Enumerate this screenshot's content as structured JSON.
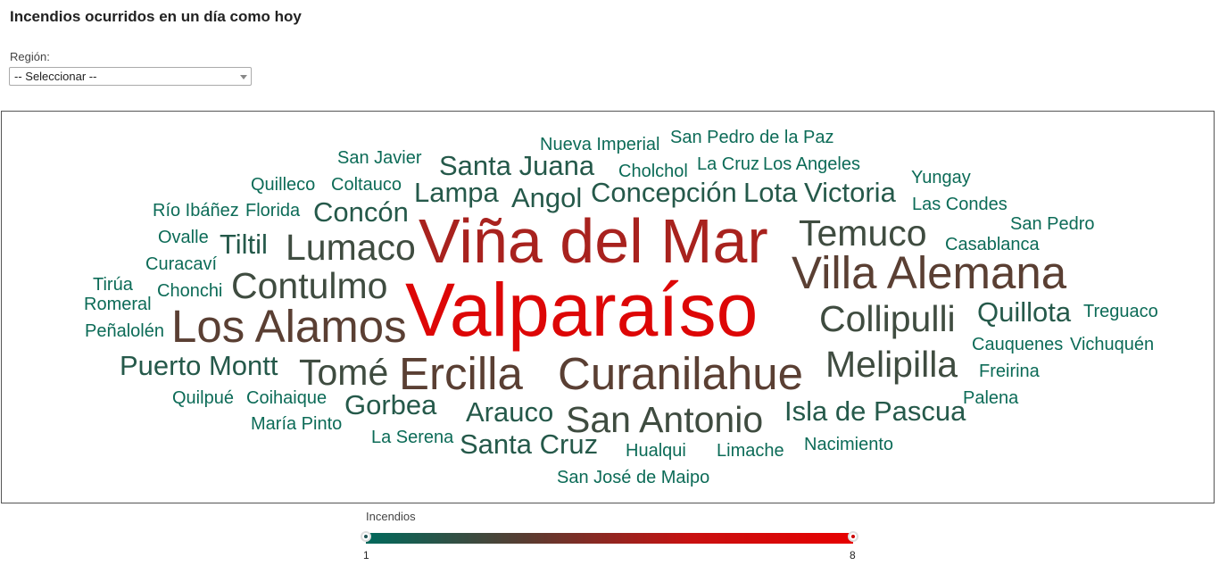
{
  "page": {
    "title": "Incendios ocurridos en un día como hoy"
  },
  "filter": {
    "label": "Región:",
    "selected": "-- Seleccionar --"
  },
  "legend": {
    "title": "Incendios",
    "min": "1",
    "max": "8",
    "colors": [
      "#00695c",
      "#5a3b30",
      "#c81010",
      "#e60000"
    ]
  },
  "words": [
    {
      "text": "Valparaíso"
    },
    {
      "text": "Viña del Mar"
    },
    {
      "text": "Villa Alemana"
    },
    {
      "text": "Los Alamos"
    },
    {
      "text": "Curanilahue"
    },
    {
      "text": "Ercilla"
    },
    {
      "text": "Contulmo"
    },
    {
      "text": "Melipilla"
    },
    {
      "text": "Lumaco"
    },
    {
      "text": "Temuco"
    },
    {
      "text": "Collipulli"
    },
    {
      "text": "Tomé"
    },
    {
      "text": "San Antonio"
    },
    {
      "text": "Isla de Pascua"
    },
    {
      "text": "Quillota"
    },
    {
      "text": "Puerto Montt"
    },
    {
      "text": "Concepción"
    },
    {
      "text": "Lota"
    },
    {
      "text": "Victoria"
    },
    {
      "text": "Santa Juana"
    },
    {
      "text": "Angol"
    },
    {
      "text": "Lampa"
    },
    {
      "text": "Concón"
    },
    {
      "text": "Tiltil"
    },
    {
      "text": "Gorbea"
    },
    {
      "text": "Arauco"
    },
    {
      "text": "Santa Cruz"
    },
    {
      "text": "Nueva Imperial"
    },
    {
      "text": "San Pedro de la Paz"
    },
    {
      "text": "San Javier"
    },
    {
      "text": "Cholchol"
    },
    {
      "text": "La Cruz"
    },
    {
      "text": "Los Angeles"
    },
    {
      "text": "Yungay"
    },
    {
      "text": "Quilleco"
    },
    {
      "text": "Coltauco"
    },
    {
      "text": "Río Ibáñez"
    },
    {
      "text": "Florida"
    },
    {
      "text": "Las Condes"
    },
    {
      "text": "San Pedro"
    },
    {
      "text": "Ovalle"
    },
    {
      "text": "Casablanca"
    },
    {
      "text": "Curacaví"
    },
    {
      "text": "Tirúa"
    },
    {
      "text": "Chonchi"
    },
    {
      "text": "Romeral"
    },
    {
      "text": "Treguaco"
    },
    {
      "text": "Peñalolén"
    },
    {
      "text": "Cauquenes"
    },
    {
      "text": "Vichuquén"
    },
    {
      "text": "Freirina"
    },
    {
      "text": "Quilpué"
    },
    {
      "text": "Coihaique"
    },
    {
      "text": "Palena"
    },
    {
      "text": "María Pinto"
    },
    {
      "text": "La Serena"
    },
    {
      "text": "Hualqui"
    },
    {
      "text": "Limache"
    },
    {
      "text": "Nacimiento"
    },
    {
      "text": "San José de Maipo"
    }
  ]
}
